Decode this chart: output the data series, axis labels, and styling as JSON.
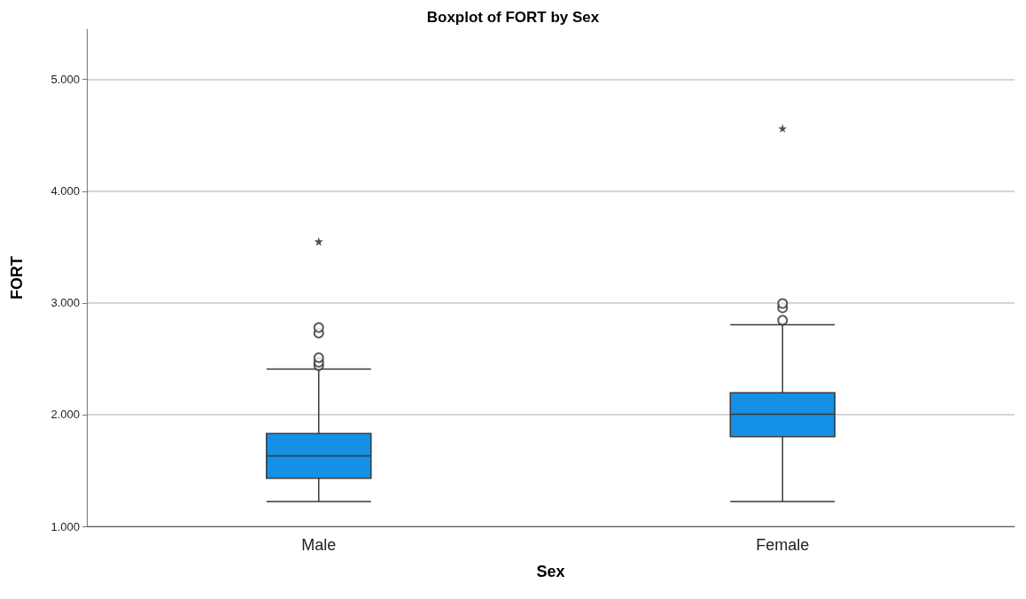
{
  "chart_data": {
    "type": "box",
    "title": "Boxplot of FORT by Sex",
    "xlabel": "Sex",
    "ylabel": "FORT",
    "categories": [
      "Male",
      "Female"
    ],
    "series": [
      {
        "color": "#1490e6",
        "boxes": [
          {
            "low": 1.222,
            "q1": 1.43,
            "median": 1.63,
            "q3": 1.83,
            "high": 2.407,
            "outliers": [
              2.44,
              2.47,
              2.51,
              2.73,
              2.78,
              3.55
            ]
          },
          {
            "low": 1.222,
            "q1": 1.804,
            "median": 2.003,
            "q3": 2.196,
            "high": 2.804,
            "outliers": [
              2.845,
              2.956,
              2.995,
              4.563
            ]
          }
        ]
      }
    ],
    "ylim": [
      1,
      5.45
    ],
    "yticks": [
      {
        "value": 1,
        "label": "1.000"
      },
      {
        "value": 2,
        "label": "2.000"
      },
      {
        "value": 3,
        "label": "3.000"
      },
      {
        "value": 4,
        "label": "4.000"
      },
      {
        "value": 5,
        "label": "5.000"
      }
    ],
    "grid": "y"
  }
}
